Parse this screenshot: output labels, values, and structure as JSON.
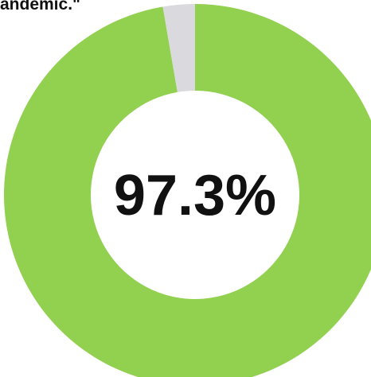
{
  "caption": "andemic.\"",
  "chart_data": {
    "type": "pie",
    "subtype": "donut",
    "slices": [
      {
        "value": 97.3,
        "color": "#92d050"
      },
      {
        "value": 2.7,
        "color": "#d9d9de"
      }
    ],
    "center_label": "97.3%",
    "center_label_color": "#111111"
  }
}
